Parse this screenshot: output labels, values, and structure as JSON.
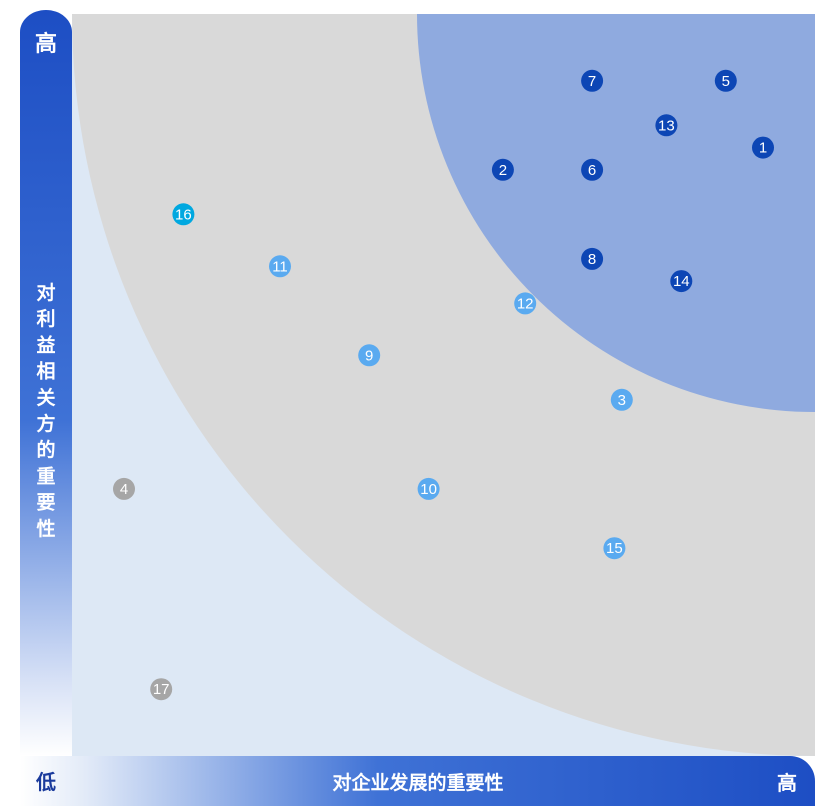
{
  "chart_data": {
    "type": "scatter",
    "title": "",
    "xlabel": "对企业发展的重要性",
    "ylabel": "对利益相关方的重要性",
    "x_low_label": "低",
    "x_high_label": "高",
    "y_high_label": "高",
    "xlim": [
      0,
      10
    ],
    "ylim": [
      0,
      10
    ],
    "grid": false,
    "legend": "none",
    "zones": [
      {
        "name": "low",
        "color": "#dde8f5"
      },
      {
        "name": "medium",
        "color": "#d9d9d9"
      },
      {
        "name": "high",
        "color": "#8faadf"
      }
    ],
    "points": [
      {
        "id": "1",
        "x": 9.3,
        "y": 8.2,
        "color": "#0d46b5"
      },
      {
        "id": "2",
        "x": 5.8,
        "y": 7.9,
        "color": "#0d46b5"
      },
      {
        "id": "3",
        "x": 7.4,
        "y": 4.8,
        "color": "#5aaaf0"
      },
      {
        "id": "4",
        "x": 0.7,
        "y": 3.6,
        "color": "#a6a6a6"
      },
      {
        "id": "5",
        "x": 8.8,
        "y": 9.1,
        "color": "#0d46b5"
      },
      {
        "id": "6",
        "x": 7.0,
        "y": 7.9,
        "color": "#0d46b5"
      },
      {
        "id": "7",
        "x": 7.0,
        "y": 9.1,
        "color": "#0d46b5"
      },
      {
        "id": "8",
        "x": 7.0,
        "y": 6.7,
        "color": "#0d46b5"
      },
      {
        "id": "9",
        "x": 4.0,
        "y": 5.4,
        "color": "#5aaaf0"
      },
      {
        "id": "10",
        "x": 4.8,
        "y": 3.6,
        "color": "#5aaaf0"
      },
      {
        "id": "11",
        "x": 2.8,
        "y": 6.6,
        "color": "#5aaaf0"
      },
      {
        "id": "12",
        "x": 6.1,
        "y": 6.1,
        "color": "#5aaaf0"
      },
      {
        "id": "13",
        "x": 8.0,
        "y": 8.5,
        "color": "#0d46b5"
      },
      {
        "id": "14",
        "x": 8.2,
        "y": 6.4,
        "color": "#0d46b5"
      },
      {
        "id": "15",
        "x": 7.3,
        "y": 2.8,
        "color": "#5aaaf0"
      },
      {
        "id": "16",
        "x": 1.5,
        "y": 7.3,
        "color": "#00a8e0"
      },
      {
        "id": "17",
        "x": 1.2,
        "y": 0.9,
        "color": "#a6a6a6"
      }
    ]
  }
}
